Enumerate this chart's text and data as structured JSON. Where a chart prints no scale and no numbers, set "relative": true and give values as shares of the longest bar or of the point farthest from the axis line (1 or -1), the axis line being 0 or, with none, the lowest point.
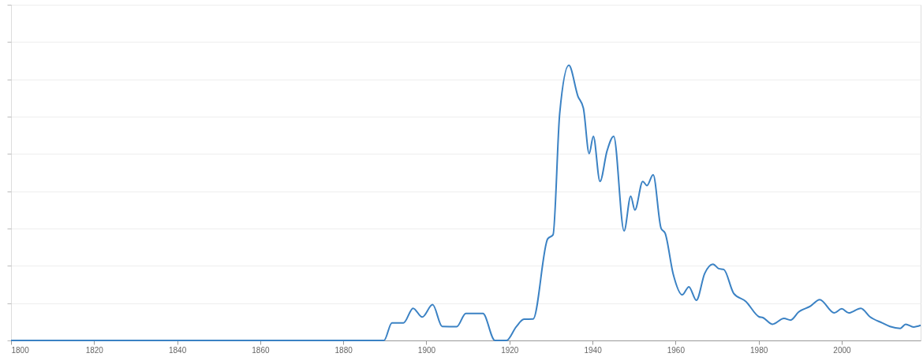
{
  "chart_data": {
    "type": "line",
    "relative": true,
    "color": "#3b82c4",
    "grid": "y",
    "marker": "none",
    "line_style": "solid",
    "tick_labels": "x",
    "xlim": [
      1800,
      2019
    ],
    "xticks": [
      1800,
      1820,
      1840,
      1860,
      1880,
      1900,
      1920,
      1940,
      1960,
      1980,
      2000
    ],
    "x": [
      1800,
      1888.2,
      1889.8,
      1891.7,
      1894.5,
      1896.8,
      1899.0,
      1901.5,
      1903.8,
      1907.3,
      1909.5,
      1913.6,
      1916.5,
      1919.3,
      1921.6,
      1923.5,
      1925.7,
      1929.2,
      1930.5,
      1932.1,
      1934.3,
      1936.5,
      1937.8,
      1939.2,
      1940.2,
      1941.8,
      1943.5,
      1945.1,
      1947.6,
      1949.2,
      1950.2,
      1952.1,
      1953.1,
      1954.6,
      1956.5,
      1957.5,
      1959.4,
      1961.6,
      1963.2,
      1965.0,
      1967.0,
      1969.0,
      1970.4,
      1971.6,
      1974.0,
      1976.9,
      1980.1,
      1981.0,
      1983.3,
      1986.1,
      1987.7,
      1989.6,
      1992.5,
      1994.7,
      1998.2,
      2000.0,
      2001.7,
      2004.6,
      2006.8,
      2009.7,
      2011.6,
      2014.1,
      2015.4,
      2017.3,
      2019.0
    ],
    "values": [
      0,
      0,
      0,
      0.064,
      0.064,
      0.117,
      0.085,
      0.13,
      0.051,
      0.05,
      0.098,
      0.098,
      0,
      0,
      0.049,
      0.077,
      0.078,
      0.369,
      0.384,
      0.825,
      1.0,
      0.887,
      0.844,
      0.679,
      0.742,
      0.578,
      0.689,
      0.742,
      0.398,
      0.524,
      0.474,
      0.578,
      0.563,
      0.602,
      0.408,
      0.389,
      0.243,
      0.166,
      0.195,
      0.146,
      0.243,
      0.277,
      0.261,
      0.258,
      0.171,
      0.142,
      0.086,
      0.083,
      0.059,
      0.08,
      0.074,
      0.103,
      0.125,
      0.148,
      0.1,
      0.115,
      0.1,
      0.117,
      0.086,
      0.064,
      0.051,
      0.044,
      0.059,
      0.049,
      0.055
    ]
  }
}
